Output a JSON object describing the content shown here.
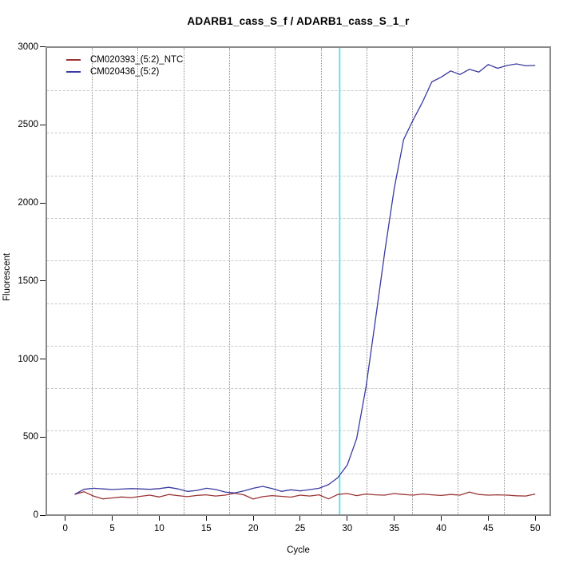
{
  "title": "ADARB1_cass_S_f / ADARB1_cass_S_1_r",
  "axes": {
    "xlabel": "Cycle",
    "ylabel": "Fluorescent"
  },
  "legend": [
    {
      "label": "CM020393_(5:2)_NTC",
      "color": "#9b3434"
    },
    {
      "label": "CM020436_(5:2)",
      "color": "#3a3aa0"
    }
  ],
  "colors": {
    "ntc_line": "#9b3434",
    "sample_line": "#3a3aa0",
    "threshold_line": "#35e2ee",
    "zero_line": "#9b3434",
    "plot_border": "#8a8a8a",
    "vgrid": "#8f8f8f",
    "hgrid": "#c9c9c9"
  },
  "chart_data": {
    "type": "line",
    "title": "ADARB1_cass_S_f / ADARB1_cass_S_1_r",
    "xlabel": "Cycle",
    "ylabel": "Fluorescent",
    "xlim": [
      -2,
      51.5
    ],
    "ylim": [
      0,
      3000
    ],
    "x_ticks": [
      0,
      5,
      10,
      15,
      20,
      25,
      30,
      35,
      40,
      45,
      50
    ],
    "y_ticks": [
      0,
      500,
      1000,
      1500,
      2000,
      2500,
      3000
    ],
    "grid": "dotted vertical and dashed horizontal, 11 divisions",
    "legend_position": "top-left inside plot",
    "x": [
      1,
      2,
      3,
      4,
      5,
      6,
      7,
      8,
      9,
      10,
      11,
      12,
      13,
      14,
      15,
      16,
      17,
      18,
      19,
      20,
      21,
      22,
      23,
      24,
      25,
      26,
      27,
      28,
      29,
      30,
      31,
      32,
      33,
      34,
      35,
      36,
      37,
      38,
      39,
      40,
      41,
      42,
      43,
      44,
      45,
      46,
      47,
      48,
      49,
      50
    ],
    "series": [
      {
        "name": "CM020393_(5:2)_NTC",
        "color": "#9b3434",
        "values": [
          133,
          150,
          122,
          104,
          110,
          116,
          112,
          120,
          128,
          116,
          132,
          125,
          118,
          126,
          130,
          122,
          128,
          140,
          130,
          103,
          118,
          125,
          120,
          115,
          128,
          122,
          130,
          104,
          132,
          138,
          125,
          135,
          130,
          128,
          138,
          132,
          128,
          135,
          130,
          126,
          132,
          128,
          148,
          132,
          128,
          130,
          128,
          124,
          122,
          135
        ]
      },
      {
        "name": "CM020436_(5:2)",
        "color": "#3a3aa0",
        "values": [
          133,
          165,
          172,
          168,
          164,
          167,
          170,
          168,
          165,
          170,
          178,
          168,
          152,
          158,
          172,
          164,
          148,
          142,
          155,
          172,
          184,
          170,
          152,
          162,
          155,
          163,
          172,
          195,
          240,
          320,
          490,
          820,
          1250,
          1690,
          2090,
          2405,
          2530,
          2645,
          2775,
          2805,
          2845,
          2822,
          2856,
          2838,
          2886,
          2862,
          2880,
          2890,
          2878,
          2880
        ]
      }
    ],
    "threshold_line": {
      "orientation": "vertical",
      "cycle": 29.2,
      "color": "#35e2ee"
    },
    "zero_line": {
      "orientation": "horizontal",
      "value": 0,
      "color": "#9b3434"
    }
  }
}
